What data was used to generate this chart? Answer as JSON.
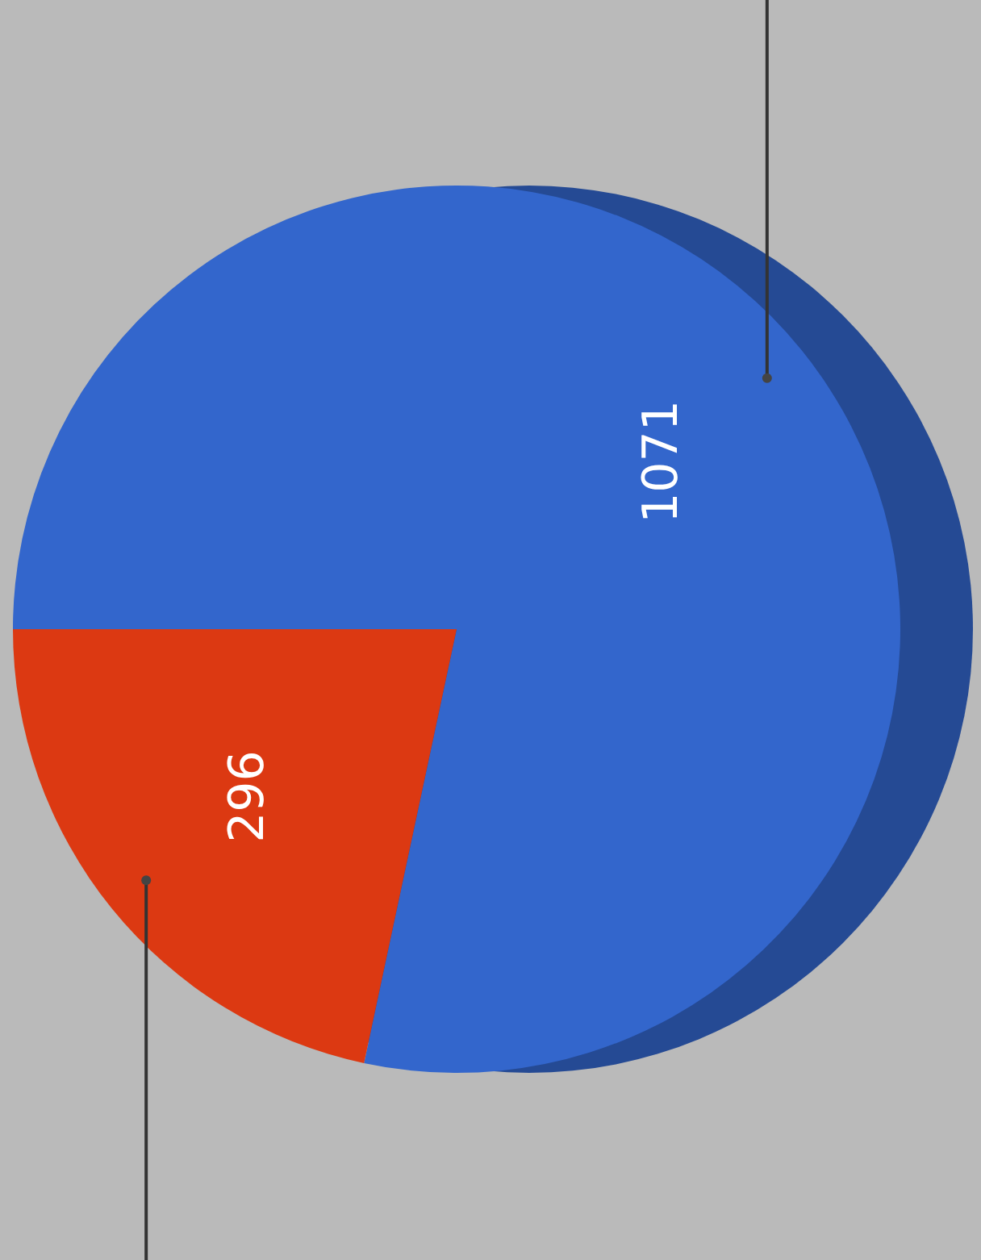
{
  "chart_data": {
    "type": "pie",
    "categories": [
      null,
      null
    ],
    "values": [
      1071,
      296
    ],
    "colors": [
      "#3366cc",
      "#dc3912"
    ],
    "data_labels": true
  }
}
